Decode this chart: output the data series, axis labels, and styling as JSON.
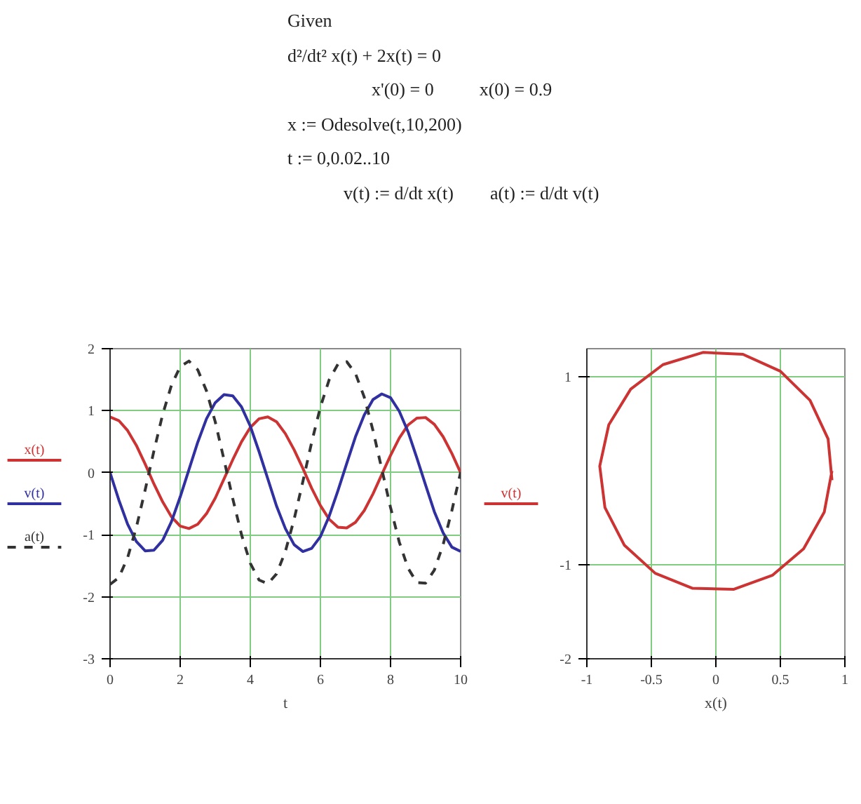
{
  "chart_data": [
    {
      "type": "line",
      "annotations": [
        "Given",
        "d²/dt² x(t) + 2x(t) = 0",
        "x'(0) = 0",
        "x(0) = 0.9",
        "x := Odesolve(t,10,200)",
        "t := 0,0.02..10",
        "v(t) := d/dt x(t)",
        "a(t) := d/dt v(t)"
      ],
      "xlabel": "t",
      "xlim": [
        0,
        10
      ],
      "ylim": [
        -3,
        2
      ],
      "xticks": [
        0,
        2,
        4,
        6,
        8,
        10
      ],
      "yticks": [
        -3,
        -2,
        -1,
        0,
        1,
        2
      ],
      "grid": true,
      "legend": "left",
      "x": [
        0,
        0.25,
        0.5,
        0.75,
        1,
        1.25,
        1.5,
        1.75,
        2,
        2.25,
        2.5,
        2.75,
        3,
        3.25,
        3.5,
        3.75,
        4,
        4.25,
        4.5,
        4.75,
        5,
        5.25,
        5.5,
        5.75,
        6,
        6.25,
        6.5,
        6.75,
        7,
        7.25,
        7.5,
        7.75,
        8,
        8.25,
        8.5,
        8.75,
        9,
        9.25,
        9.5,
        9.75,
        10
      ],
      "series": [
        {
          "name": "x(t)",
          "color": "#cc3333",
          "line_style": "solid",
          "values": [
            0.9,
            0.84,
            0.68,
            0.44,
            0.14,
            -0.18,
            -0.47,
            -0.71,
            -0.86,
            -0.9,
            -0.83,
            -0.66,
            -0.41,
            -0.1,
            0.21,
            0.5,
            0.73,
            0.87,
            0.9,
            0.82,
            0.63,
            0.37,
            0.07,
            -0.25,
            -0.53,
            -0.75,
            -0.88,
            -0.89,
            -0.8,
            -0.61,
            -0.34,
            -0.03,
            0.28,
            0.56,
            0.77,
            0.88,
            0.89,
            0.78,
            0.58,
            0.31,
            0.0
          ]
        },
        {
          "name": "v(t)",
          "color": "#3030a0",
          "line_style": "solid",
          "values": [
            0,
            -0.44,
            -0.83,
            -1.11,
            -1.26,
            -1.25,
            -1.09,
            -0.79,
            -0.39,
            0.05,
            0.49,
            0.87,
            1.13,
            1.26,
            1.24,
            1.06,
            0.75,
            0.34,
            -0.1,
            -0.54,
            -0.9,
            -1.16,
            -1.27,
            -1.22,
            -1.03,
            -0.7,
            -0.29,
            0.15,
            0.58,
            0.93,
            1.18,
            1.27,
            1.21,
            0.99,
            0.66,
            0.24,
            -0.2,
            -0.63,
            -0.97,
            -1.2,
            -1.27
          ]
        },
        {
          "name": "a(t)",
          "color": "#333333",
          "line_style": "dashed",
          "values": [
            -1.8,
            -1.69,
            -1.37,
            -0.88,
            -0.28,
            0.35,
            0.94,
            1.41,
            1.71,
            1.8,
            1.66,
            1.32,
            0.82,
            0.21,
            -0.42,
            -1.0,
            -1.46,
            -1.73,
            -1.79,
            -1.63,
            -1.27,
            -0.75,
            -0.14,
            0.49,
            1.06,
            1.5,
            1.75,
            1.79,
            1.6,
            1.22,
            0.68,
            0.06,
            -0.56,
            -1.12,
            -1.54,
            -1.77,
            -1.78,
            -1.57,
            -1.16,
            -0.61,
            0.01
          ]
        }
      ]
    },
    {
      "type": "line",
      "xlabel": "x(t)",
      "xlim": [
        -1,
        1
      ],
      "ylim": [
        -2,
        1.3
      ],
      "xticks": [
        -1,
        -0.5,
        0,
        0.5,
        1
      ],
      "yticks": [
        -2,
        -1,
        1
      ],
      "grid": true,
      "legend": "left",
      "series": [
        {
          "name": "v(t)",
          "color": "#cc3333",
          "line_style": "solid",
          "x": [
            0.9,
            0.84,
            0.68,
            0.44,
            0.14,
            -0.18,
            -0.47,
            -0.71,
            -0.86,
            -0.9,
            -0.83,
            -0.66,
            -0.41,
            -0.1,
            0.21,
            0.5,
            0.73,
            0.87,
            0.9
          ],
          "values": [
            0,
            -0.44,
            -0.83,
            -1.11,
            -1.26,
            -1.25,
            -1.09,
            -0.79,
            -0.39,
            0.05,
            0.49,
            0.87,
            1.13,
            1.26,
            1.24,
            1.06,
            0.75,
            0.34,
            -0.1
          ]
        }
      ]
    }
  ]
}
